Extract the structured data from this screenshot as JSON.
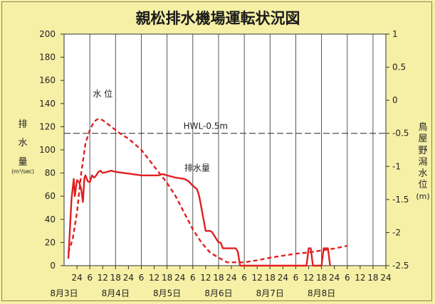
{
  "chart_data": {
    "type": "line",
    "title": "親松排水機場運転状況図",
    "y_left": {
      "label_chars": [
        "排",
        "水",
        "量"
      ],
      "unit": "(m³/sec)",
      "range": [
        0,
        200
      ],
      "ticks": [
        0,
        20,
        40,
        60,
        80,
        100,
        120,
        140,
        160,
        180,
        200
      ]
    },
    "y_right": {
      "label_chars": [
        "鳥",
        "屋",
        "野",
        "潟",
        "水",
        "位",
        "(m)"
      ],
      "range": [
        -2.5,
        1
      ],
      "ticks": [
        -2.5,
        -2,
        -1.5,
        -1,
        -0.5,
        0,
        0.5,
        1
      ],
      "tick_labels": [
        "-2.5",
        "-2",
        "-1.5",
        "-1",
        "-0.5",
        "0",
        "0.5",
        "1"
      ]
    },
    "x": {
      "unit": "hours from 8月3日 0時",
      "range": [
        18,
        168
      ],
      "tick_hours": [
        24,
        30,
        36,
        42,
        48,
        54,
        60,
        66,
        72,
        78,
        84,
        90,
        96,
        102,
        108,
        114,
        120,
        126,
        132,
        138,
        144,
        150,
        156,
        162,
        168
      ],
      "tick_labels": [
        "24",
        "6",
        "12",
        "18",
        "24",
        "6",
        "12",
        "18",
        "24",
        "6",
        "12",
        "18",
        "24",
        "6",
        "12",
        "18",
        "24",
        "6",
        "12",
        "18",
        "24",
        "6",
        "12",
        "18",
        "24"
      ],
      "grid_hours": [
        30,
        42,
        54,
        66,
        78,
        90,
        102,
        114,
        126,
        138,
        150,
        162
      ],
      "date_labels": [
        {
          "hour": 18,
          "text": "8月3日"
        },
        {
          "hour": 42,
          "text": "8月4日"
        },
        {
          "hour": 66,
          "text": "8月5日"
        },
        {
          "hour": 90,
          "text": "8月6日"
        },
        {
          "hour": 114,
          "text": "8月7日"
        },
        {
          "hour": 138,
          "text": "8月8日"
        }
      ]
    },
    "hwl": {
      "value": -0.5,
      "label": "HWL-0.5m"
    },
    "series": [
      {
        "name": "排水量",
        "axis": "left",
        "style": "solid",
        "color": "#e02020",
        "points": [
          [
            20,
            6
          ],
          [
            21.5,
            58
          ],
          [
            22.5,
            75
          ],
          [
            23,
            60
          ],
          [
            24,
            74
          ],
          [
            25,
            72
          ],
          [
            26,
            66
          ],
          [
            26.8,
            55
          ],
          [
            27.5,
            76
          ],
          [
            28,
            78
          ],
          [
            29,
            73
          ],
          [
            30,
            72
          ],
          [
            31,
            78
          ],
          [
            32,
            76
          ],
          [
            33,
            78
          ],
          [
            34,
            81
          ],
          [
            35,
            82
          ],
          [
            36,
            80
          ],
          [
            38,
            81
          ],
          [
            40,
            82
          ],
          [
            42,
            81
          ],
          [
            46,
            80
          ],
          [
            50,
            79
          ],
          [
            54,
            78
          ],
          [
            58,
            78
          ],
          [
            62,
            78
          ],
          [
            64,
            79
          ],
          [
            66,
            78
          ],
          [
            70,
            76
          ],
          [
            74,
            75
          ],
          [
            76,
            73
          ],
          [
            78,
            69
          ],
          [
            80,
            66
          ],
          [
            81,
            60
          ],
          [
            82,
            50
          ],
          [
            83,
            40
          ],
          [
            84,
            30
          ],
          [
            86,
            30
          ],
          [
            87,
            29
          ],
          [
            88,
            26
          ],
          [
            90,
            20
          ],
          [
            91,
            20
          ],
          [
            92,
            15
          ],
          [
            94,
            15
          ],
          [
            96,
            15
          ],
          [
            98,
            15
          ],
          [
            99,
            12
          ],
          [
            100,
            0
          ],
          [
            131,
            0
          ],
          [
            132,
            15
          ],
          [
            133,
            15
          ],
          [
            134,
            0
          ],
          [
            138,
            0
          ],
          [
            139,
            15
          ],
          [
            141,
            15
          ],
          [
            142,
            0
          ]
        ]
      },
      {
        "name": "水 位",
        "axis": "right",
        "style": "dashed",
        "color": "#e02020",
        "points": [
          [
            20,
            -2.3
          ],
          [
            22,
            -2.1
          ],
          [
            24,
            -1.7
          ],
          [
            26,
            -1.1
          ],
          [
            28,
            -0.65
          ],
          [
            30,
            -0.45
          ],
          [
            32,
            -0.32
          ],
          [
            34,
            -0.28
          ],
          [
            36,
            -0.3
          ],
          [
            40,
            -0.4
          ],
          [
            44,
            -0.5
          ],
          [
            48,
            -0.58
          ],
          [
            54,
            -0.75
          ],
          [
            60,
            -1.0
          ],
          [
            66,
            -1.25
          ],
          [
            70,
            -1.45
          ],
          [
            74,
            -1.7
          ],
          [
            78,
            -1.95
          ],
          [
            82,
            -2.15
          ],
          [
            86,
            -2.3
          ],
          [
            90,
            -2.38
          ],
          [
            94,
            -2.45
          ],
          [
            98,
            -2.45
          ],
          [
            102,
            -2.45
          ],
          [
            108,
            -2.42
          ],
          [
            114,
            -2.38
          ],
          [
            120,
            -2.35
          ],
          [
            126,
            -2.32
          ],
          [
            132,
            -2.3
          ],
          [
            138,
            -2.27
          ],
          [
            144,
            -2.24
          ],
          [
            150,
            -2.2
          ]
        ]
      }
    ],
    "annotations": [
      {
        "text": "水 位",
        "series": "水 位"
      },
      {
        "text": "排水量",
        "series": "排水量"
      }
    ]
  }
}
